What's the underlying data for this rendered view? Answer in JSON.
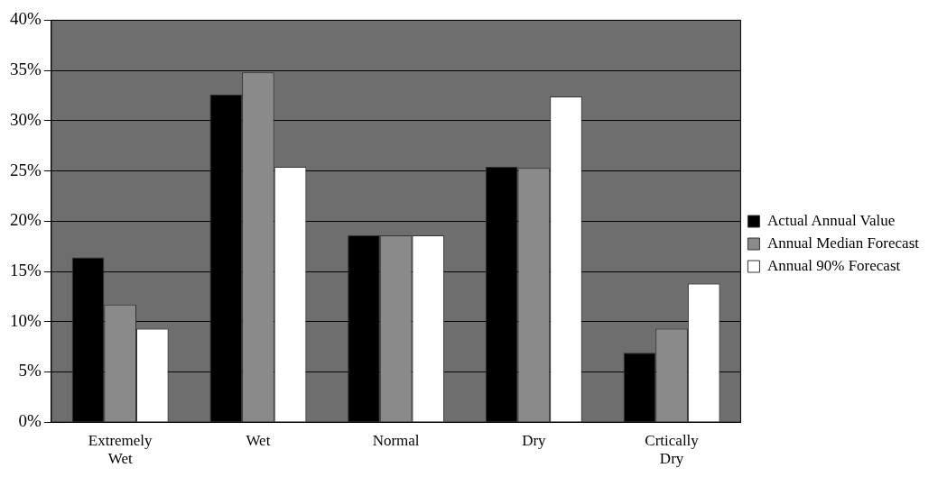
{
  "chart_data": {
    "type": "bar",
    "categories": [
      "Extremely Wet",
      "Wet",
      "Normal",
      "Dry",
      "Crtically Dry"
    ],
    "series": [
      {
        "name": "Actual Annual Value",
        "color": "#000000",
        "values": [
          16.4,
          32.6,
          18.6,
          25.4,
          6.9
        ]
      },
      {
        "name": "Annual Median Forecast",
        "color": "#8a8a8a",
        "values": [
          11.7,
          34.8,
          18.6,
          25.3,
          9.3
        ]
      },
      {
        "name": "Annual 90% Forecast",
        "color": "#ffffff",
        "values": [
          9.3,
          25.4,
          18.6,
          32.4,
          13.8
        ]
      }
    ],
    "ylim": [
      0,
      40
    ],
    "yticks": [
      {
        "value": 0,
        "label": "0%"
      },
      {
        "value": 5,
        "label": "5%"
      },
      {
        "value": 10,
        "label": "10%"
      },
      {
        "value": 15,
        "label": "15%"
      },
      {
        "value": 20,
        "label": "20%"
      },
      {
        "value": 25,
        "label": "25%"
      },
      {
        "value": 30,
        "label": "30%"
      },
      {
        "value": 35,
        "label": "35%"
      },
      {
        "value": 40,
        "label": "40%"
      }
    ],
    "grid": "y",
    "legend": "right"
  }
}
